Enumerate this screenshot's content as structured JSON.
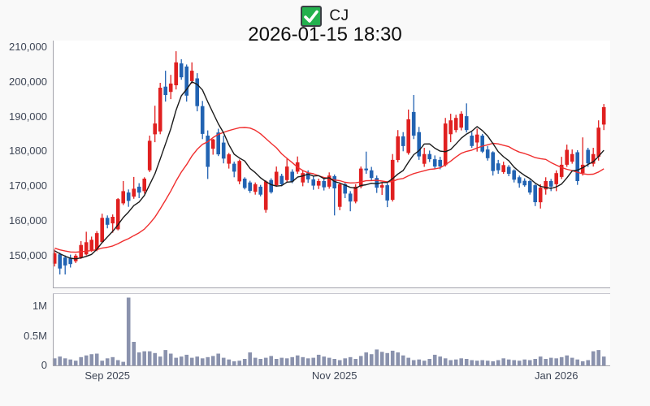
{
  "header": {
    "checkbox_label": "CJ",
    "title": "2026-01-15 18:30"
  },
  "colors": {
    "up_candle": "#e02020",
    "down_candle": "#2263b2",
    "ma_short": "#1a1a1a",
    "ma_long": "#f02e2e",
    "volume_bar": "#8a92ad",
    "background": "#f9f9f9",
    "plot_background": "#ffffff",
    "axis_line": "#a4a4ac",
    "axis_text": "#3e4656",
    "checkbox_green": "#23b14d",
    "checkbox_border": "#3a3f44",
    "checkmark": "#ffffff"
  },
  "chart_data": {
    "type": "candlestick+volume",
    "title": "CJ",
    "timestamp": "2026-01-15 18:30",
    "legend": "none",
    "grid": false,
    "y_axis": {
      "min": 144000,
      "max": 210000,
      "ticks": [
        {
          "label": "210,000",
          "value": 210000
        },
        {
          "label": "200,000",
          "value": 200000
        },
        {
          "label": "190,000",
          "value": 190000
        },
        {
          "label": "180,000",
          "value": 180000
        },
        {
          "label": "170,000",
          "value": 170000
        },
        {
          "label": "160,000",
          "value": 160000
        },
        {
          "label": "150,000",
          "value": 150000
        }
      ]
    },
    "volume_axis": {
      "ticks": [
        {
          "label": "1M",
          "value": 1000000
        },
        {
          "label": "0.5M",
          "value": 500000
        },
        {
          "label": "0",
          "value": 0
        }
      ]
    },
    "x_axis": {
      "ticks": [
        {
          "label": "Sep 2025",
          "index": 10
        },
        {
          "label": "Nov 2025",
          "index": 53
        },
        {
          "label": "Jan 2026",
          "index": 95
        }
      ]
    },
    "ma": {
      "short_window": 7,
      "long_window": 20,
      "seed": [
        154000,
        153600,
        153200,
        152800,
        152400,
        152000,
        151600,
        151200,
        150900,
        150700
      ]
    },
    "candles": [
      [
        147600,
        151700,
        146800,
        150600
      ],
      [
        150300,
        150800,
        144500,
        146200
      ],
      [
        149400,
        150000,
        144500,
        147100
      ],
      [
        149200,
        150200,
        146500,
        147500
      ],
      [
        148300,
        150400,
        147800,
        149900
      ],
      [
        149400,
        154100,
        149000,
        153000
      ],
      [
        150300,
        156800,
        150000,
        153800
      ],
      [
        151500,
        155400,
        151000,
        154500
      ],
      [
        151700,
        157000,
        151200,
        156400
      ],
      [
        153800,
        162000,
        153500,
        160800
      ],
      [
        160800,
        161500,
        157800,
        158800
      ],
      [
        159200,
        161800,
        156500,
        161100
      ],
      [
        157500,
        166500,
        157200,
        166200
      ],
      [
        165000,
        171400,
        164500,
        168500
      ],
      [
        168100,
        169000,
        164000,
        165700
      ],
      [
        166900,
        172600,
        166300,
        169200
      ],
      [
        169800,
        170800,
        166500,
        168100
      ],
      [
        168500,
        172500,
        167800,
        172100
      ],
      [
        174500,
        184500,
        174000,
        183000
      ],
      [
        184900,
        193100,
        182600,
        188000
      ],
      [
        185700,
        199700,
        184900,
        198300
      ],
      [
        198600,
        203200,
        194300,
        196200
      ],
      [
        197100,
        202000,
        195000,
        199500
      ],
      [
        199000,
        208800,
        197800,
        205600
      ],
      [
        205300,
        206500,
        200600,
        201300
      ],
      [
        204400,
        205000,
        194300,
        196000
      ],
      [
        200200,
        205600,
        199500,
        203200
      ],
      [
        201000,
        202500,
        191500,
        193000
      ],
      [
        193000,
        194500,
        183500,
        185000
      ],
      [
        184500,
        186000,
        172000,
        175500
      ],
      [
        180700,
        183600,
        179000,
        183400
      ],
      [
        185400,
        186500,
        178600,
        179100
      ],
      [
        182500,
        184500,
        176500,
        177900
      ],
      [
        176400,
        179500,
        175000,
        179100
      ],
      [
        176400,
        177000,
        172500,
        174100
      ],
      [
        171300,
        177600,
        170500,
        177200
      ],
      [
        172100,
        172500,
        169000,
        169400
      ],
      [
        171000,
        171500,
        168000,
        168600
      ],
      [
        168300,
        171000,
        167500,
        170500
      ],
      [
        169800,
        170300,
        167000,
        167500
      ],
      [
        163100,
        171600,
        162300,
        171300
      ],
      [
        171700,
        172200,
        167800,
        168200
      ],
      [
        170200,
        175600,
        169800,
        174100
      ],
      [
        172900,
        173500,
        169900,
        170500
      ],
      [
        171700,
        177900,
        171200,
        175600
      ],
      [
        174100,
        174800,
        170800,
        171300
      ],
      [
        174100,
        178500,
        173500,
        176800
      ],
      [
        171000,
        174400,
        169900,
        173700
      ],
      [
        173700,
        174500,
        170900,
        171900
      ],
      [
        171900,
        173000,
        168900,
        170100
      ],
      [
        170100,
        172100,
        169100,
        171400
      ],
      [
        171400,
        172000,
        168700,
        169600
      ],
      [
        169800,
        173900,
        169200,
        173000
      ],
      [
        172800,
        173300,
        161500,
        169300
      ],
      [
        164000,
        171000,
        163000,
        170500
      ],
      [
        170500,
        171000,
        166500,
        167800
      ],
      [
        167800,
        168500,
        162700,
        165500
      ],
      [
        165500,
        170500,
        165000,
        169800
      ],
      [
        169800,
        175600,
        169300,
        175000
      ],
      [
        175000,
        179900,
        173500,
        174500
      ],
      [
        174500,
        175500,
        171500,
        172300
      ],
      [
        172300,
        173000,
        168000,
        169500
      ],
      [
        169500,
        171000,
        167400,
        170200
      ],
      [
        170200,
        170800,
        163900,
        165800
      ],
      [
        166000,
        179200,
        165500,
        177500
      ],
      [
        177500,
        186100,
        176800,
        184300
      ],
      [
        184300,
        185500,
        180000,
        181500
      ],
      [
        179500,
        192000,
        179000,
        189200
      ],
      [
        191300,
        196200,
        183500,
        184500
      ],
      [
        185500,
        187000,
        177500,
        178500
      ],
      [
        176400,
        181000,
        175500,
        179200
      ],
      [
        179200,
        180200,
        176900,
        177700
      ],
      [
        177700,
        178800,
        174900,
        175600
      ],
      [
        177500,
        178400,
        174800,
        175600
      ],
      [
        176000,
        189600,
        175600,
        188000
      ],
      [
        184900,
        190800,
        182600,
        188900
      ],
      [
        186100,
        190500,
        185400,
        189600
      ],
      [
        186800,
        191500,
        186000,
        190800
      ],
      [
        190100,
        193800,
        185400,
        186100
      ],
      [
        184500,
        185500,
        181000,
        181500
      ],
      [
        182500,
        186500,
        179900,
        184800
      ],
      [
        184500,
        185000,
        179500,
        179900
      ],
      [
        180500,
        181500,
        177300,
        178000
      ],
      [
        179700,
        180000,
        173000,
        174300
      ],
      [
        176500,
        177500,
        173500,
        174500
      ],
      [
        174000,
        177000,
        173500,
        176000
      ],
      [
        175500,
        176000,
        172800,
        173500
      ],
      [
        174500,
        174800,
        171000,
        171800
      ],
      [
        172500,
        173000,
        169500,
        170800
      ],
      [
        171500,
        172200,
        169800,
        170200
      ],
      [
        171400,
        171800,
        167500,
        168100
      ],
      [
        170200,
        170500,
        164200,
        165300
      ],
      [
        165300,
        170500,
        163500,
        169500
      ],
      [
        169000,
        172500,
        167500,
        171400
      ],
      [
        171400,
        172000,
        168500,
        169800
      ],
      [
        170500,
        174500,
        168500,
        173700
      ],
      [
        172600,
        178400,
        172000,
        176100
      ],
      [
        176100,
        181900,
        175500,
        180400
      ],
      [
        177000,
        180500,
        176400,
        179200
      ],
      [
        179700,
        180300,
        170300,
        171400
      ],
      [
        173700,
        184000,
        173000,
        176100
      ],
      [
        180400,
        181000,
        175500,
        176500
      ],
      [
        176400,
        181000,
        175600,
        179200
      ],
      [
        178400,
        188900,
        177300,
        186800
      ],
      [
        187700,
        193600,
        186100,
        192700
      ]
    ],
    "volumes": [
      120000,
      150000,
      120000,
      100000,
      80000,
      140000,
      170000,
      190000,
      200000,
      80000,
      120000,
      140000,
      90000,
      60000,
      1150000,
      400000,
      220000,
      240000,
      240000,
      210000,
      150000,
      260000,
      200000,
      130000,
      150000,
      180000,
      130000,
      150000,
      120000,
      140000,
      160000,
      200000,
      130000,
      100000,
      70000,
      80000,
      110000,
      220000,
      130000,
      110000,
      130000,
      160000,
      110000,
      130000,
      120000,
      140000,
      170000,
      140000,
      120000,
      130000,
      180000,
      150000,
      130000,
      110000,
      90000,
      120000,
      140000,
      110000,
      160000,
      220000,
      190000,
      270000,
      230000,
      210000,
      250000,
      220000,
      170000,
      130000,
      90000,
      100000,
      80000,
      110000,
      180000,
      150000,
      120000,
      90000,
      100000,
      120000,
      110000,
      90000,
      80000,
      90000,
      80000,
      70000,
      90000,
      120000,
      100000,
      90000,
      80000,
      100000,
      90000,
      110000,
      150000,
      110000,
      130000,
      120000,
      140000,
      170000,
      130000,
      100000,
      70000,
      90000,
      240000,
      260000,
      150000
    ]
  }
}
